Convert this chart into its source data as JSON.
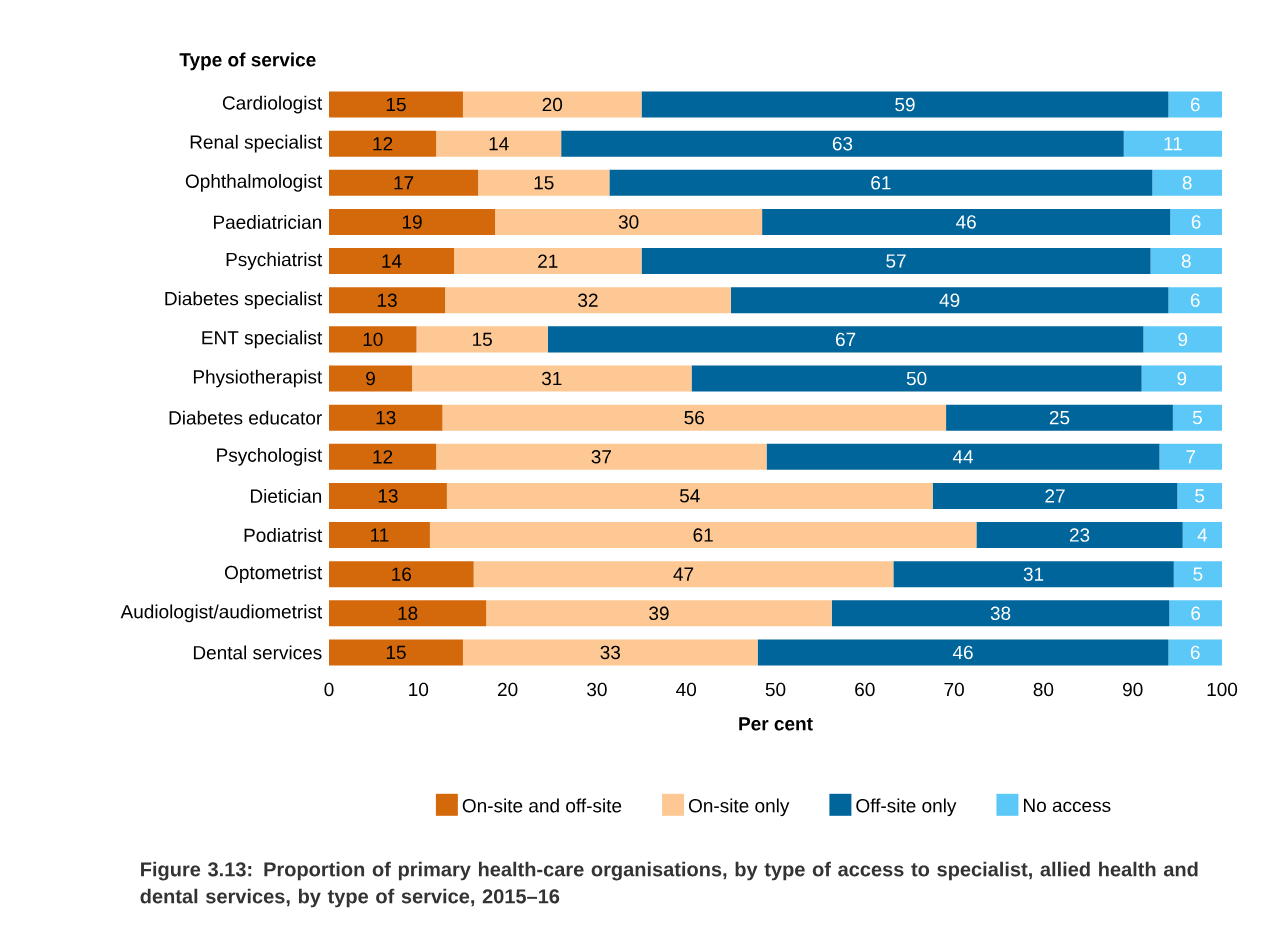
{
  "chart_data": {
    "type": "bar",
    "orientation": "horizontal",
    "stacked": true,
    "title": "Figure 3.13: Proportion of primary health-care organisations, by type of access to specialist, allied health and dental services, by type of service, 2015–16",
    "xlabel": "Per cent",
    "ylabel": "Type of service",
    "categories": [
      "Cardiologist",
      "Renal specialist",
      "Ophthalmologist",
      "Paediatrician",
      "Psychiatrist",
      "Diabetes specialist",
      "ENT specialist",
      "Physiotherapist",
      "Diabetes educator",
      "Psychologist",
      "Dietician",
      "Podiatrist",
      "Optometrist",
      "Audiologist/audiometrist",
      "Dental services"
    ],
    "xlim": [
      0,
      100
    ],
    "xticks": [
      0,
      10,
      20,
      30,
      40,
      50,
      60,
      70,
      80,
      90,
      100
    ],
    "legend": "bottom",
    "series": [
      {
        "name": "On-site and off-site",
        "color": "#d4690c",
        "values": [
          15,
          12,
          16.7,
          18.6,
          14,
          13,
          9.8,
          9.3,
          12.7,
          12,
          13.2,
          11.3,
          16.2,
          17.6,
          15
        ],
        "value_labels": [
          "15",
          "12",
          "17",
          "19",
          "14",
          "13",
          "10",
          "9",
          "13",
          "12",
          "13",
          "11",
          "16",
          "18",
          "15"
        ]
      },
      {
        "name": "On-site only",
        "color": "#fdc894",
        "values": [
          20,
          14,
          14.7,
          29.9,
          21,
          32,
          14.7,
          31.3,
          56.4,
          37,
          54.4,
          61.2,
          47.0,
          38.7,
          33
        ],
        "value_labels": [
          "20",
          "14",
          "15",
          "30",
          "21",
          "32",
          "15",
          "31",
          "56",
          "37",
          "54",
          "61",
          "47",
          "39",
          "33"
        ]
      },
      {
        "name": "Off-site only",
        "color": "#00659a",
        "values": [
          59,
          63,
          60.8,
          45.7,
          57,
          49,
          66.7,
          50.4,
          25.4,
          44,
          27.4,
          23.1,
          31.4,
          37.8,
          46
        ],
        "value_labels": [
          "59",
          "63",
          "61",
          "46",
          "57",
          "49",
          "67",
          "50",
          "25",
          "44",
          "27",
          "23",
          "31",
          "38",
          "46"
        ]
      },
      {
        "name": "No access",
        "color": "#5bc8f8",
        "values": [
          6,
          11,
          7.8,
          5.8,
          8,
          6,
          8.8,
          9.0,
          5.5,
          7,
          5.0,
          4.4,
          5.4,
          5.9,
          6
        ],
        "value_labels": [
          "6",
          "11",
          "8",
          "6",
          "8",
          "6",
          "9",
          "9",
          "5",
          "7",
          "5",
          "4",
          "5",
          "6",
          "6"
        ]
      }
    ]
  }
}
